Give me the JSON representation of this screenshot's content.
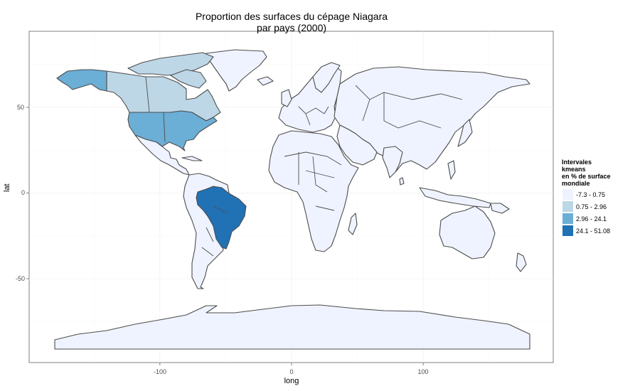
{
  "title": {
    "line1": "Proportion des surfaces du cépage Niagara",
    "line2": "par pays (2000)"
  },
  "axes": {
    "x_title": "long",
    "y_title": "lat",
    "x_ticks": [
      "-100",
      "0",
      "100"
    ],
    "y_ticks": [
      "50",
      "0",
      "-50"
    ],
    "xlim": [
      -180,
      180
    ],
    "ylim": [
      -90,
      84
    ],
    "grid": true
  },
  "colors": {
    "class1": "#eff3ff",
    "class2": "#bdd7e7",
    "class3": "#6baed6",
    "class4": "#2171b5",
    "border": "#4d4d4d"
  },
  "legend": {
    "title_lines": [
      "Intervales",
      " kmeans",
      " en % de surface",
      " mondiale"
    ],
    "placement": "right",
    "items": [
      {
        "label": "-7.3 - 0.75",
        "color": "#eff3ff"
      },
      {
        "label": "0.75 - 2.96",
        "color": "#bdd7e7"
      },
      {
        "label": "2.96 - 24.1",
        "color": "#6baed6"
      },
      {
        "label": "24.1 - 51.08",
        "color": "#2171b5"
      }
    ]
  },
  "chart_data": {
    "type": "choropleth",
    "title": "Proportion des surfaces du cépage Niagara par pays (2000)",
    "xlabel": "long",
    "ylabel": "lat",
    "legend_title": "Intervales kmeans en % de surface mondiale",
    "classes": [
      "-7.3 - 0.75",
      "0.75 - 2.96",
      "2.96 - 24.1",
      "24.1 - 51.08"
    ],
    "highlighted_regions": [
      {
        "region": "Brazil",
        "class": "24.1 - 51.08"
      },
      {
        "region": "USA",
        "class": "2.96 - 24.1"
      },
      {
        "region": "Alaska",
        "class": "2.96 - 24.1"
      },
      {
        "region": "Canada",
        "class": "0.75 - 2.96"
      }
    ],
    "default_class": "-7.3 - 0.75"
  }
}
